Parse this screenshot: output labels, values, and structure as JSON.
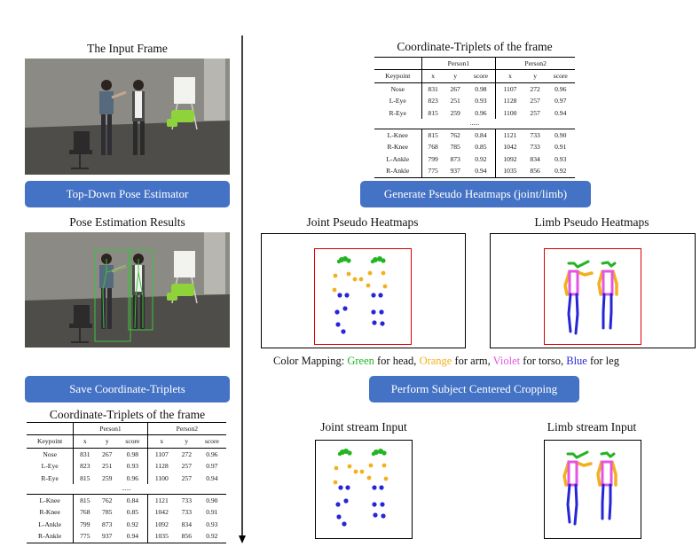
{
  "left": {
    "input_title": "The Input Frame",
    "pose_button": "Top-Down Pose Estimator",
    "results_title": "Pose Estimation Results",
    "save_button": "Save Coordinate-Triplets",
    "table_title": "Coordinate-Triplets of the frame"
  },
  "right": {
    "table_title": "Coordinate-Triplets of the frame",
    "generate_button": "Generate Pseudo Heatmaps (joint/limb)",
    "joint_heatmaps_title": "Joint Pseudo Heatmaps",
    "limb_heatmaps_title": "Limb Pseudo Heatmaps",
    "crop_button": "Perform Subject Centered Cropping",
    "joint_stream_title": "Joint stream Input",
    "limb_stream_title": "Limb stream Input"
  },
  "color_mapping": {
    "prefix": "Color Mapping: ",
    "head": "Green",
    "head_suffix": " for head, ",
    "arm": "Orange",
    "arm_suffix": " for arm, ",
    "torso": "Violet",
    "torso_suffix": " for torso, ",
    "leg": "Blue",
    "leg_suffix": " for leg",
    "colors": {
      "head": "#22b522",
      "arm": "#f2b01e",
      "torso": "#e455e4",
      "leg": "#2626d8"
    }
  },
  "table": {
    "person1": "Person1",
    "person2": "Person2",
    "headers": [
      "Keypoint",
      "x",
      "y",
      "score",
      "x",
      "y",
      "score"
    ],
    "rows_top": [
      [
        "Nose",
        "831",
        "267",
        "0.98",
        "1107",
        "272",
        "0.96"
      ],
      [
        "L-Eye",
        "823",
        "251",
        "0.93",
        "1128",
        "257",
        "0.97"
      ],
      [
        "R-Eye",
        "815",
        "259",
        "0.96",
        "1100",
        "257",
        "0.94"
      ]
    ],
    "ellipsis": "......",
    "rows_bottom": [
      [
        "L-Knee",
        "815",
        "762",
        "0.84",
        "1121",
        "733",
        "0.90"
      ],
      [
        "R-Knee",
        "768",
        "785",
        "0.85",
        "1042",
        "733",
        "0.91"
      ],
      [
        "L-Ankle",
        "799",
        "873",
        "0.92",
        "1092",
        "834",
        "0.93"
      ],
      [
        "R-Ankle",
        "775",
        "937",
        "0.94",
        "1035",
        "856",
        "0.92"
      ]
    ]
  }
}
